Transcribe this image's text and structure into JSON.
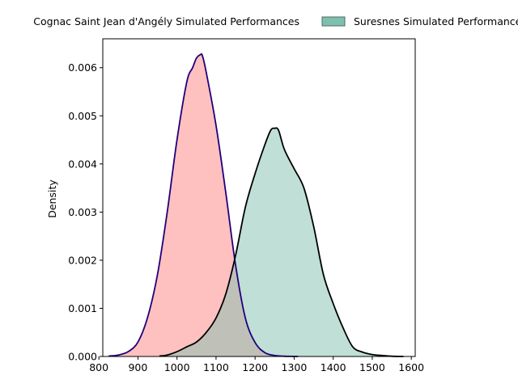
{
  "chart_data": {
    "type": "area",
    "ylabel": "Density",
    "xlabel": "",
    "xlim": [
      810,
      1610
    ],
    "ylim": [
      0,
      0.0066
    ],
    "x_ticks": [
      800,
      900,
      1000,
      1100,
      1200,
      1300,
      1400,
      1500,
      1600
    ],
    "y_ticks": [
      0.0,
      0.001,
      0.002,
      0.003,
      0.004,
      0.005,
      0.006
    ],
    "y_tick_labels": [
      "0.000",
      "0.001",
      "0.002",
      "0.003",
      "0.004",
      "0.005",
      "0.006"
    ],
    "grid": false,
    "legend": {
      "placement": "top",
      "cropped": true
    },
    "series": [
      {
        "name": "Cognac Saint Jean d'Angély Simulated Performances",
        "fill": "#ff9999",
        "fill_opacity": 0.62,
        "line": "#1f007d",
        "x": [
          825,
          850,
          875,
          900,
          925,
          950,
          975,
          1000,
          1025,
          1040,
          1050,
          1060,
          1065,
          1075,
          1100,
          1125,
          1150,
          1175,
          1200,
          1225,
          1250,
          1275,
          1300,
          1310
        ],
        "y": [
          1e-05,
          3e-05,
          0.0001,
          0.0003,
          0.00082,
          0.0017,
          0.003,
          0.0045,
          0.0057,
          0.006,
          0.0062,
          0.00627,
          0.00625,
          0.0059,
          0.0048,
          0.0034,
          0.0019,
          0.0008,
          0.00029,
          8e-05,
          2e-05,
          5e-06,
          1e-06,
          0.0
        ]
      },
      {
        "name": "Suresnes Simulated Performances",
        "fill": "#7fbfaf",
        "fill_opacity": 0.5,
        "line": "#000000",
        "x": [
          955,
          975,
          1000,
          1025,
          1050,
          1075,
          1100,
          1125,
          1150,
          1175,
          1200,
          1225,
          1240,
          1250,
          1260,
          1275,
          1300,
          1325,
          1350,
          1375,
          1400,
          1425,
          1450,
          1475,
          1500,
          1525,
          1550,
          1580
        ],
        "y": [
          1e-05,
          3e-05,
          0.0001,
          0.0002,
          0.0003,
          0.0005,
          0.0008,
          0.0013,
          0.0021,
          0.0031,
          0.0038,
          0.0044,
          0.0047,
          0.00474,
          0.0047,
          0.0043,
          0.0039,
          0.0035,
          0.0027,
          0.0017,
          0.0011,
          0.0006,
          0.0002,
          9e-05,
          4e-05,
          2e-05,
          5e-06,
          0.0
        ]
      }
    ]
  }
}
